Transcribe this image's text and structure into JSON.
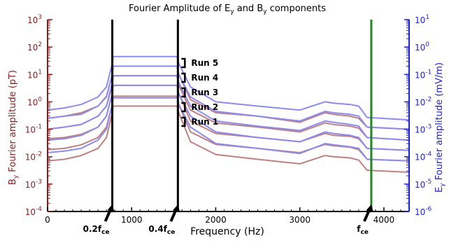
{
  "chart_data": {
    "type": "line",
    "title": "Fourier Amplitude of E",
    "title_sub1": "y",
    "title_mid": " and B",
    "title_sub2": "y",
    "title_end": " components",
    "xlabel": "Frequency (Hz)",
    "ylabel_left": {
      "main": "B",
      "sub": "y",
      "rest": " Fourier amplitude (pT)"
    },
    "ylabel_right": {
      "main": "E",
      "sub": "y",
      "rest": " Fourier amplitude (mV/m)"
    },
    "x_ticks": [
      "0",
      "1000",
      "2000",
      "3000",
      "4000"
    ],
    "xlim": [
      0,
      4300
    ],
    "left_axis": {
      "log": true,
      "ylim": [
        0.0001,
        1000
      ],
      "ticks": [
        {
          "b": "10",
          "e": "-4"
        },
        {
          "b": "10",
          "e": "-3"
        },
        {
          "b": "10",
          "e": "-2"
        },
        {
          "b": "10",
          "e": "-1"
        },
        {
          "b": "10",
          "e": "0"
        },
        {
          "b": "10",
          "e": "1"
        },
        {
          "b": "10",
          "e": "2"
        },
        {
          "b": "10",
          "e": "3"
        }
      ],
      "color": "#8b1c1c"
    },
    "right_axis": {
      "log": true,
      "ylim": [
        1e-06,
        10
      ],
      "ticks": [
        {
          "b": "10",
          "e": "-6"
        },
        {
          "b": "10",
          "e": "-5"
        },
        {
          "b": "10",
          "e": "-4"
        },
        {
          "b": "10",
          "e": "-3"
        },
        {
          "b": "10",
          "e": "-2"
        },
        {
          "b": "10",
          "e": "-1"
        },
        {
          "b": "10",
          "e": "0"
        },
        {
          "b": "10",
          "e": "1"
        }
      ],
      "color": "#1f1fd6"
    },
    "vertical_lines": [
      {
        "x": 770,
        "color": "#000000",
        "label_main": "0.2f",
        "label_sub": "ce"
      },
      {
        "x": 1550,
        "color": "#000000",
        "label_main": "0.4f",
        "label_sub": "ce"
      },
      {
        "x": 3850,
        "color": "#1a8c1a",
        "label_main": "f",
        "label_sub": "ce"
      }
    ],
    "run_labels": [
      "Run 5",
      "Run 4",
      "Run 3",
      "Run 2",
      "Run 1"
    ],
    "series_colors": {
      "B": "#c08080",
      "E": "#8c8cf0"
    },
    "series": [
      {
        "component": "B",
        "run": 5,
        "x": [
          0,
          200,
          400,
          600,
          700,
          770,
          780,
          1540,
          1560,
          1700,
          2000,
          2500,
          3000,
          3300,
          3400,
          3600,
          3700,
          3800,
          4300
        ],
        "values": [
          0.25,
          0.3,
          0.4,
          0.7,
          1.6,
          10,
          20,
          20,
          10,
          1.2,
          0.4,
          0.3,
          0.18,
          0.4,
          0.35,
          0.3,
          0.25,
          0.12,
          0.1
        ]
      },
      {
        "component": "E",
        "run": 5,
        "x": [
          0,
          200,
          400,
          600,
          700,
          770,
          780,
          1540,
          1560,
          1700,
          2000,
          2500,
          3000,
          3300,
          3400,
          3600,
          3700,
          3800,
          4300
        ],
        "values": [
          0.005,
          0.006,
          0.008,
          0.015,
          0.035,
          0.25,
          0.45,
          0.45,
          0.25,
          0.035,
          0.01,
          0.007,
          0.005,
          0.01,
          0.009,
          0.008,
          0.007,
          0.0027,
          0.0022
        ]
      },
      {
        "component": "B",
        "run": 4,
        "x": [
          0,
          200,
          400,
          600,
          700,
          770,
          780,
          1540,
          1560,
          1700,
          2000,
          2500,
          3000,
          3300,
          3400,
          3600,
          3700,
          3800,
          4300
        ],
        "values": [
          0.1,
          0.12,
          0.15,
          0.3,
          0.7,
          4,
          9,
          9,
          4,
          0.5,
          0.17,
          0.12,
          0.08,
          0.17,
          0.15,
          0.13,
          0.11,
          0.05,
          0.04
        ]
      },
      {
        "component": "E",
        "run": 4,
        "x": [
          0,
          200,
          400,
          600,
          700,
          770,
          780,
          1540,
          1560,
          1700,
          2000,
          2500,
          3000,
          3300,
          3400,
          3600,
          3700,
          3800,
          4300
        ],
        "values": [
          0.0025,
          0.003,
          0.0035,
          0.007,
          0.015,
          0.1,
          0.2,
          0.2,
          0.1,
          0.015,
          0.0045,
          0.003,
          0.002,
          0.0045,
          0.004,
          0.0035,
          0.003,
          0.0012,
          0.001
        ]
      },
      {
        "component": "B",
        "run": 3,
        "x": [
          0,
          200,
          400,
          600,
          700,
          770,
          780,
          1540,
          1560,
          1700,
          2000,
          2500,
          3000,
          3300,
          3400,
          3600,
          3700,
          3800,
          4300
        ],
        "values": [
          0.045,
          0.05,
          0.065,
          0.12,
          0.3,
          2,
          4,
          4,
          2,
          0.2,
          0.07,
          0.05,
          0.035,
          0.07,
          0.06,
          0.055,
          0.045,
          0.02,
          0.017
        ]
      },
      {
        "component": "E",
        "run": 3,
        "x": [
          0,
          200,
          400,
          600,
          700,
          770,
          780,
          1540,
          1560,
          1700,
          2000,
          2500,
          3000,
          3300,
          3400,
          3600,
          3700,
          3800,
          4300
        ],
        "values": [
          0.001,
          0.0012,
          0.0015,
          0.003,
          0.007,
          0.05,
          0.09,
          0.09,
          0.05,
          0.007,
          0.002,
          0.0013,
          0.0009,
          0.002,
          0.0018,
          0.0015,
          0.0013,
          0.0005,
          0.0004
        ]
      },
      {
        "component": "B",
        "run": 2,
        "x": [
          0,
          200,
          400,
          600,
          700,
          770,
          780,
          1540,
          1560,
          1700,
          2000,
          2500,
          3000,
          3300,
          3400,
          3600,
          3700,
          3800,
          4300
        ],
        "values": [
          0.018,
          0.02,
          0.027,
          0.05,
          0.12,
          0.8,
          1.6,
          1.6,
          0.8,
          0.08,
          0.028,
          0.02,
          0.014,
          0.028,
          0.025,
          0.022,
          0.018,
          0.008,
          0.007
        ]
      },
      {
        "component": "E",
        "run": 2,
        "x": [
          0,
          200,
          400,
          600,
          700,
          770,
          780,
          1540,
          1560,
          1700,
          2000,
          2500,
          3000,
          3300,
          3400,
          3600,
          3700,
          3800,
          4300
        ],
        "values": [
          0.0004,
          0.00045,
          0.0006,
          0.0012,
          0.003,
          0.02,
          0.04,
          0.04,
          0.02,
          0.003,
          0.0008,
          0.0005,
          0.00035,
          0.0008,
          0.0007,
          0.0006,
          0.0005,
          0.0002,
          0.00017
        ]
      },
      {
        "component": "B",
        "run": 1,
        "x": [
          0,
          200,
          400,
          600,
          700,
          770,
          780,
          1540,
          1560,
          1700,
          2000,
          2500,
          3000,
          3300,
          3400,
          3600,
          3700,
          3800,
          4300
        ],
        "values": [
          0.007,
          0.008,
          0.011,
          0.02,
          0.05,
          0.4,
          0.7,
          0.7,
          0.4,
          0.035,
          0.012,
          0.008,
          0.0055,
          0.011,
          0.01,
          0.009,
          0.0075,
          0.0032,
          0.0027
        ]
      },
      {
        "component": "E",
        "run": 1,
        "x": [
          0,
          200,
          400,
          600,
          700,
          770,
          780,
          1540,
          1560,
          1700,
          2000,
          2500,
          3000,
          3300,
          3400,
          3600,
          3700,
          3800,
          4300
        ],
        "values": [
          0.00014,
          0.00016,
          0.0002,
          0.0004,
          0.001,
          0.008,
          0.014,
          0.014,
          0.008,
          0.0012,
          0.0003,
          0.0002,
          0.00013,
          0.0003,
          0.00027,
          0.00023,
          0.0002,
          8e-05,
          7e-05
        ]
      }
    ]
  }
}
